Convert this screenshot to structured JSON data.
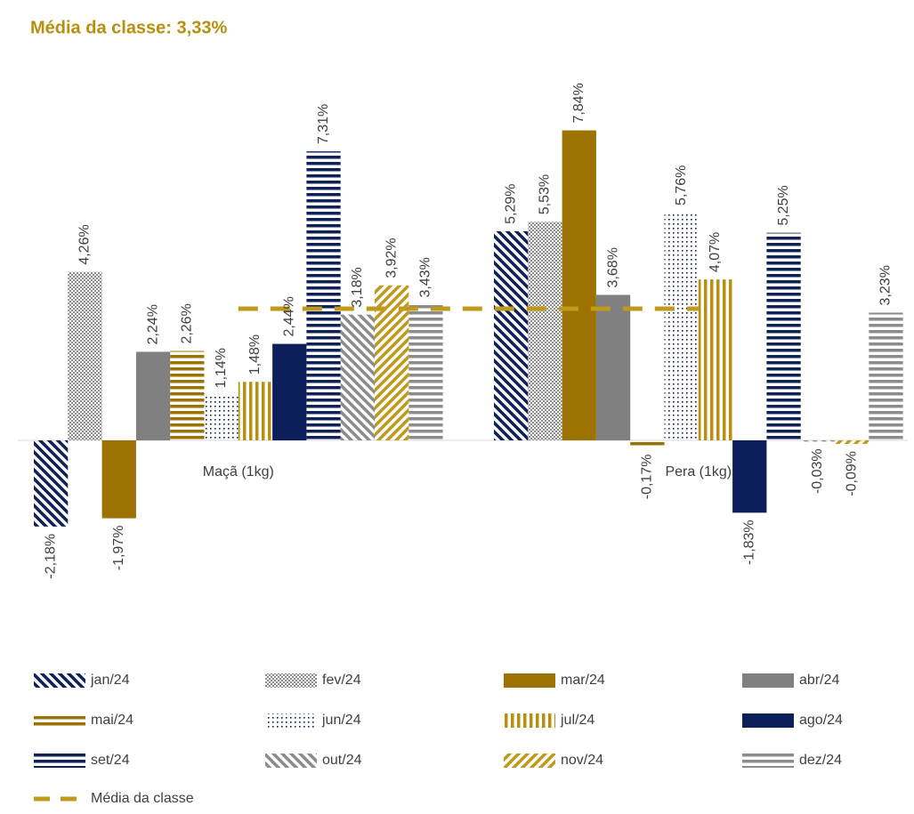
{
  "chart_data": {
    "type": "bar",
    "title": "Média da classe: 3,33%",
    "categories": [
      "Maçã (1kg)",
      "Pera (1kg)"
    ],
    "ylim": [
      -4.5,
      9.0
    ],
    "series": [
      {
        "name": "jan/24",
        "color": "#0f2258",
        "pattern": "diag-down",
        "values": [
          -2.18,
          5.29
        ],
        "value_labels": [
          "-2,18%",
          "5,29%"
        ]
      },
      {
        "name": "fev/24",
        "color": "#8c8c8c",
        "pattern": "checker",
        "values": [
          4.26,
          5.53
        ],
        "value_labels": [
          "4,26%",
          "5,53%"
        ]
      },
      {
        "name": "mar/24",
        "color": "#9c7200",
        "pattern": "solid",
        "values": [
          -1.97,
          7.84
        ],
        "value_labels": [
          "-1,97%",
          "7,84%"
        ]
      },
      {
        "name": "abr/24",
        "color": "#808080",
        "pattern": "solid",
        "values": [
          2.24,
          3.68
        ],
        "value_labels": [
          "2,24%",
          "3,68%"
        ]
      },
      {
        "name": "mai/24",
        "color": "#9c7200",
        "pattern": "hstripes",
        "values": [
          2.26,
          -0.17
        ],
        "value_labels": [
          "2,26%",
          "-0,17%"
        ]
      },
      {
        "name": "jun/24",
        "color": "#0f2258",
        "pattern": "dots",
        "values": [
          1.14,
          5.76
        ],
        "value_labels": [
          "1,14%",
          "5,76%"
        ]
      },
      {
        "name": "jul/24",
        "color": "#b8900e",
        "pattern": "vstripes",
        "values": [
          1.48,
          4.07
        ],
        "value_labels": [
          "1,48%",
          "4,07%"
        ]
      },
      {
        "name": "ago/24",
        "color": "#0c1f5b",
        "pattern": "solid",
        "values": [
          2.44,
          -1.83
        ],
        "value_labels": [
          "2,44%",
          "-1,83%"
        ]
      },
      {
        "name": "set/24",
        "color": "#0f2258",
        "pattern": "hstripes",
        "values": [
          7.31,
          5.25
        ],
        "value_labels": [
          "7,31%",
          "5,25%"
        ]
      },
      {
        "name": "out/24",
        "color": "#8c8c8c",
        "pattern": "diag-down",
        "values": [
          3.18,
          -0.03
        ],
        "value_labels": [
          "3,18%",
          "-0,03%"
        ]
      },
      {
        "name": "nov/24",
        "color": "#c09a1a",
        "pattern": "diag-up",
        "values": [
          3.92,
          -0.09
        ],
        "value_labels": [
          "3,92%",
          "-0,09%"
        ]
      },
      {
        "name": "dez/24",
        "color": "#8c8c8c",
        "pattern": "hstripes",
        "values": [
          3.43,
          3.23
        ],
        "value_labels": [
          "3,43%",
          "3,23%"
        ]
      }
    ],
    "line_series": {
      "name": "Média da classe",
      "color": "#c09a1a",
      "values": [
        3.33,
        3.33
      ]
    }
  }
}
